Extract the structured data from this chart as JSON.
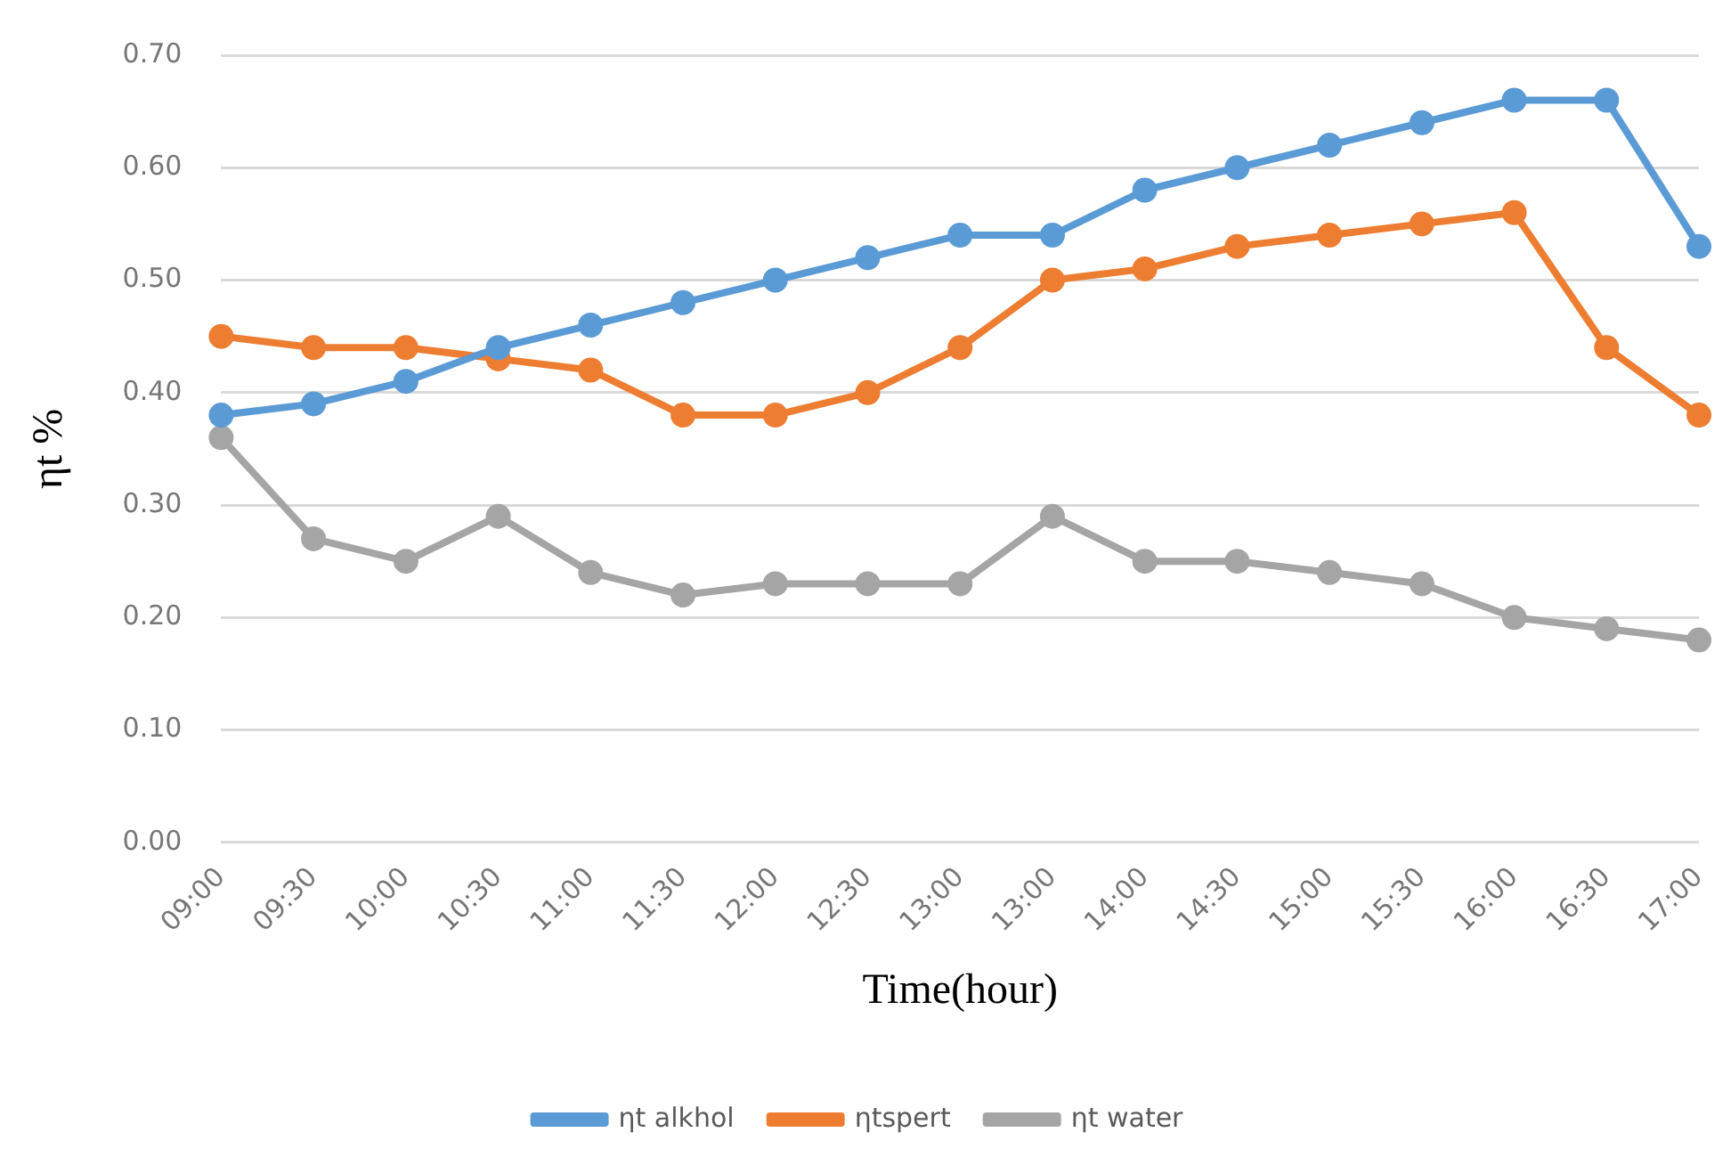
{
  "chart_data": {
    "type": "line",
    "xlabel": "Time(hour)",
    "ylabel": "ηt %",
    "categories": [
      "09:00",
      "09:30",
      "10:00",
      "10:30",
      "11:00",
      "11:30",
      "12:00",
      "12:30",
      "13:00",
      "13:00",
      "14:00",
      "14:30",
      "15:00",
      "15:30",
      "16:00",
      "16:30",
      "17:00"
    ],
    "series": [
      {
        "name": "ηt alkhol",
        "color": "#5b9bd5",
        "values": [
          0.38,
          0.39,
          0.41,
          0.44,
          0.46,
          0.48,
          0.5,
          0.52,
          0.54,
          0.54,
          0.58,
          0.6,
          0.62,
          0.64,
          0.66,
          0.66,
          0.53
        ]
      },
      {
        "name": "ηtspert",
        "color": "#ed7d31",
        "values": [
          0.45,
          0.44,
          0.44,
          0.43,
          0.42,
          0.38,
          0.38,
          0.4,
          0.44,
          0.5,
          0.51,
          0.53,
          0.54,
          0.55,
          0.56,
          0.44,
          0.38
        ]
      },
      {
        "name": "ηt water",
        "color": "#a5a5a5",
        "values": [
          0.36,
          0.27,
          0.25,
          0.29,
          0.24,
          0.22,
          0.23,
          0.23,
          0.23,
          0.29,
          0.25,
          0.25,
          0.24,
          0.23,
          0.2,
          0.19,
          0.18
        ]
      }
    ],
    "ylim": [
      0,
      0.7
    ],
    "yticks": [
      {
        "value": 0,
        "label": "0.00"
      },
      {
        "value": 0.1,
        "label": "0.10"
      },
      {
        "value": 0.2,
        "label": "0.20"
      },
      {
        "value": 0.3,
        "label": "0.30"
      },
      {
        "value": 0.4,
        "label": "0.40"
      },
      {
        "value": 0.5,
        "label": "0.50"
      },
      {
        "value": 0.6,
        "label": "0.60"
      },
      {
        "value": 0.7,
        "label": "0.70"
      }
    ],
    "grid": "y",
    "legend": "bottom",
    "marker": "circle",
    "line_style": "solid"
  }
}
